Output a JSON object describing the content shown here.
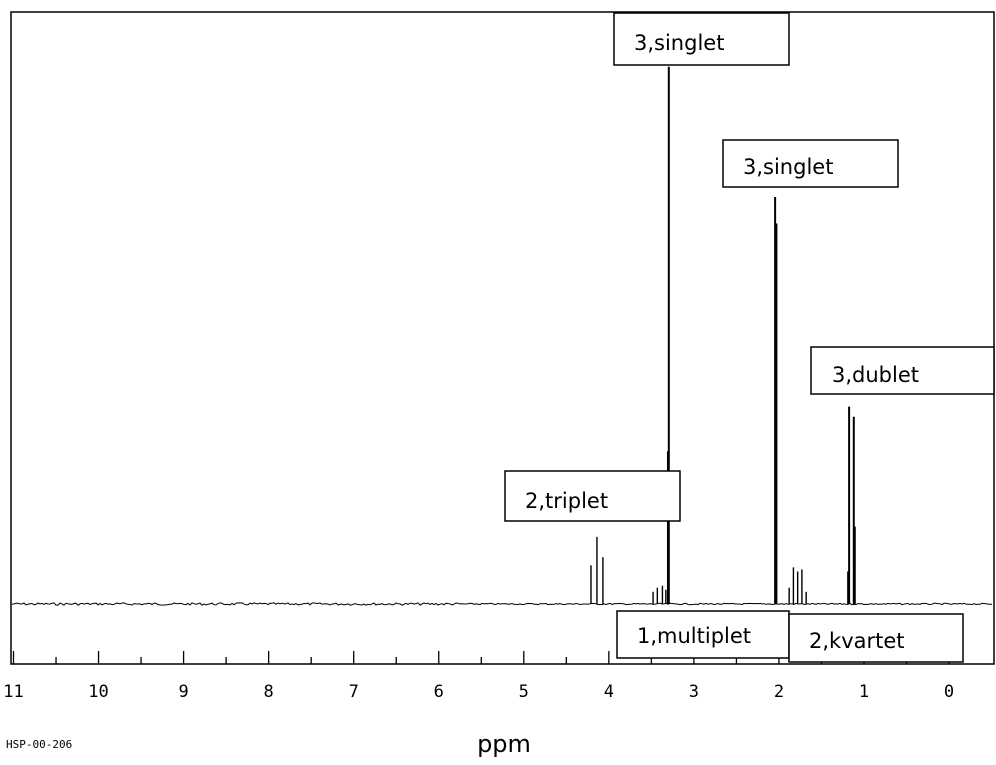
{
  "chart_data": {
    "type": "line",
    "title": "",
    "xlabel": "ppm",
    "ylabel": "",
    "code_label": "HSP-00-206",
    "xlim": [
      11.05,
      -0.25
    ],
    "x_reversed": true,
    "grid": false,
    "ticks_major": [
      11,
      10,
      9,
      8,
      7,
      6,
      5,
      4,
      3,
      2,
      1,
      0
    ],
    "ticks_minor": [
      10.5,
      9.5,
      8.5,
      7.5,
      6.5,
      5.5,
      4.5,
      3.5,
      2.5,
      1.5,
      0.5
    ],
    "tick_labels": [
      "11",
      "10",
      "9",
      "8",
      "7",
      "6",
      "5",
      "4",
      "3",
      "2",
      "1",
      "0"
    ],
    "series": [
      {
        "peaks": [
          {
            "x": 4.21,
            "y": 0.095
          },
          {
            "x": 4.14,
            "y": 0.165
          },
          {
            "x": 4.07,
            "y": 0.115
          },
          {
            "x": 3.48,
            "y": 0.03
          },
          {
            "x": 3.43,
            "y": 0.04
          },
          {
            "x": 3.37,
            "y": 0.045
          },
          {
            "x": 3.33,
            "y": 0.035
          },
          {
            "x": 3.305,
            "y": 0.375
          },
          {
            "x": 3.295,
            "y": 1.32
          },
          {
            "x": 2.045,
            "y": 1.0
          },
          {
            "x": 2.03,
            "y": 0.935
          },
          {
            "x": 1.88,
            "y": 0.04
          },
          {
            "x": 1.83,
            "y": 0.09
          },
          {
            "x": 1.78,
            "y": 0.08
          },
          {
            "x": 1.73,
            "y": 0.085
          },
          {
            "x": 1.68,
            "y": 0.03
          },
          {
            "x": 1.19,
            "y": 0.08
          },
          {
            "x": 1.175,
            "y": 0.485
          },
          {
            "x": 1.12,
            "y": 0.46
          },
          {
            "x": 1.105,
            "y": 0.19
          }
        ]
      }
    ],
    "annotations": [
      {
        "text": "3,singlet"
      },
      {
        "text": "3,singlet"
      },
      {
        "text": "3,dublet"
      },
      {
        "text": "2,triplet"
      },
      {
        "text": "1,multiplet"
      },
      {
        "text": "2,kvartet"
      }
    ]
  }
}
